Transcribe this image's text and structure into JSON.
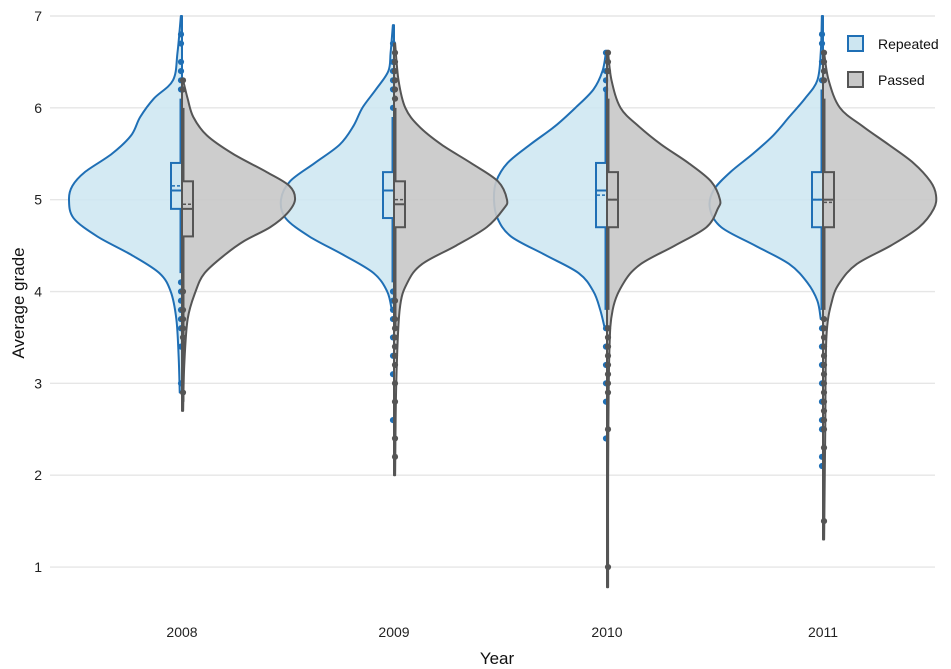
{
  "chart_data": {
    "type": "violin",
    "title": "",
    "xlabel": "Year",
    "ylabel": "Average grade",
    "ylim": [
      0.75,
      7
    ],
    "yticks": [
      1,
      2,
      3,
      4,
      5,
      6,
      7
    ],
    "categories": [
      "2008",
      "2009",
      "2010",
      "2011"
    ],
    "grid": "horizontal",
    "legend": {
      "position": "top-right",
      "items": [
        {
          "label": "Repeated",
          "series": "repeated"
        },
        {
          "label": "Passed",
          "series": "passed"
        }
      ]
    },
    "colors": {
      "repeated_line": "#1f6fb5",
      "repeated_fill": "#cde6f1",
      "passed_line": "#555555",
      "passed_fill": "#c8c8c8",
      "grid": "#e6e6e6"
    },
    "series": [
      {
        "name": "Repeated",
        "key": "repeated",
        "side": "left",
        "groups": [
          {
            "year": "2008",
            "ymin": 2.9,
            "ymax": 7.0,
            "box": {
              "q1": 4.9,
              "median": 5.1,
              "q3": 5.4,
              "mean": 5.15,
              "lower_whisker": 4.2,
              "upper_whisker": 6.1
            },
            "outliers": [
              6.8,
              6.7,
              6.5,
              6.4,
              6.3,
              6.2,
              4.1,
              4.0,
              3.9,
              3.8,
              3.7,
              3.6,
              3.4,
              3.0
            ],
            "density": [
              [
                2.9,
                0.02
              ],
              [
                3.3,
                0.03
              ],
              [
                3.7,
                0.05
              ],
              [
                4.0,
                0.1
              ],
              [
                4.2,
                0.2
              ],
              [
                4.4,
                0.45
              ],
              [
                4.6,
                0.75
              ],
              [
                4.8,
                0.96
              ],
              [
                5.0,
                1.0
              ],
              [
                5.15,
                0.97
              ],
              [
                5.3,
                0.86
              ],
              [
                5.5,
                0.62
              ],
              [
                5.7,
                0.45
              ],
              [
                5.9,
                0.37
              ],
              [
                6.1,
                0.25
              ],
              [
                6.3,
                0.08
              ],
              [
                6.6,
                0.04
              ],
              [
                7.0,
                0.01
              ]
            ]
          },
          {
            "year": "2009",
            "ymin": 2.0,
            "ymax": 6.9,
            "box": {
              "q1": 4.8,
              "median": 5.1,
              "q3": 5.3,
              "mean": 5.1,
              "lower_whisker": 4.1,
              "upper_whisker": 5.9
            },
            "outliers": [
              6.7,
              6.5,
              6.4,
              6.3,
              6.2,
              6.0,
              4.0,
              3.9,
              3.8,
              3.7,
              3.5,
              3.3,
              3.1,
              2.6
            ],
            "density": [
              [
                3.8,
                0.02
              ],
              [
                4.0,
                0.06
              ],
              [
                4.2,
                0.18
              ],
              [
                4.4,
                0.45
              ],
              [
                4.6,
                0.75
              ],
              [
                4.8,
                0.96
              ],
              [
                5.0,
                1.0
              ],
              [
                5.2,
                0.92
              ],
              [
                5.4,
                0.7
              ],
              [
                5.6,
                0.48
              ],
              [
                5.8,
                0.36
              ],
              [
                6.0,
                0.28
              ],
              [
                6.2,
                0.16
              ],
              [
                6.4,
                0.05
              ],
              [
                6.6,
                0.03
              ],
              [
                6.9,
                0.01
              ]
            ]
          },
          {
            "year": "2010",
            "ymin": 2.4,
            "ymax": 6.6,
            "box": {
              "q1": 4.7,
              "median": 5.1,
              "q3": 5.4,
              "mean": 5.05,
              "lower_whisker": 3.8,
              "upper_whisker": 6.2
            },
            "outliers": [
              6.6,
              6.4,
              6.3,
              6.2,
              3.6,
              3.4,
              3.2,
              3.0,
              2.8,
              2.4
            ],
            "density": [
              [
                3.6,
                0.02
              ],
              [
                3.8,
                0.06
              ],
              [
                4.0,
                0.12
              ],
              [
                4.2,
                0.25
              ],
              [
                4.4,
                0.55
              ],
              [
                4.6,
                0.85
              ],
              [
                4.8,
                0.97
              ],
              [
                5.0,
                1.0
              ],
              [
                5.2,
                0.98
              ],
              [
                5.4,
                0.88
              ],
              [
                5.6,
                0.68
              ],
              [
                5.8,
                0.46
              ],
              [
                6.0,
                0.28
              ],
              [
                6.2,
                0.12
              ],
              [
                6.4,
                0.04
              ],
              [
                6.6,
                0.01
              ]
            ]
          },
          {
            "year": "2011",
            "ymin": 2.1,
            "ymax": 7.0,
            "box": {
              "q1": 4.7,
              "median": 5.0,
              "q3": 5.3,
              "mean": 5.0,
              "lower_whisker": 3.8,
              "upper_whisker": 6.2
            },
            "outliers": [
              6.8,
              6.7,
              6.5,
              6.3,
              3.6,
              3.4,
              3.2,
              3.0,
              2.8,
              2.6,
              2.5,
              2.2,
              2.1
            ],
            "density": [
              [
                3.7,
                0.02
              ],
              [
                3.9,
                0.05
              ],
              [
                4.1,
                0.14
              ],
              [
                4.3,
                0.3
              ],
              [
                4.5,
                0.6
              ],
              [
                4.7,
                0.9
              ],
              [
                4.9,
                1.0
              ],
              [
                5.1,
                0.97
              ],
              [
                5.3,
                0.82
              ],
              [
                5.5,
                0.62
              ],
              [
                5.7,
                0.44
              ],
              [
                5.9,
                0.3
              ],
              [
                6.1,
                0.16
              ],
              [
                6.3,
                0.05
              ],
              [
                6.6,
                0.02
              ],
              [
                7.0,
                0.01
              ]
            ]
          }
        ]
      },
      {
        "name": "Passed",
        "key": "passed",
        "side": "right",
        "groups": [
          {
            "year": "2008",
            "ymin": 2.7,
            "ymax": 6.3,
            "box": {
              "q1": 4.6,
              "median": 4.9,
              "q3": 5.2,
              "mean": 4.95,
              "lower_whisker": 2.8,
              "upper_whisker": 6.0
            },
            "outliers": [
              6.3,
              6.2,
              4.0,
              3.8,
              3.7,
              3.6,
              3.5,
              2.9
            ],
            "density": [
              [
                2.7,
                0.01
              ],
              [
                3.2,
                0.02
              ],
              [
                3.7,
                0.05
              ],
              [
                4.0,
                0.12
              ],
              [
                4.2,
                0.2
              ],
              [
                4.4,
                0.38
              ],
              [
                4.55,
                0.55
              ],
              [
                4.7,
                0.78
              ],
              [
                4.85,
                0.93
              ],
              [
                5.0,
                1.0
              ],
              [
                5.15,
                0.95
              ],
              [
                5.3,
                0.75
              ],
              [
                5.5,
                0.45
              ],
              [
                5.7,
                0.22
              ],
              [
                5.9,
                0.1
              ],
              [
                6.1,
                0.05
              ],
              [
                6.3,
                0.01
              ]
            ]
          },
          {
            "year": "2009",
            "ymin": 2.0,
            "ymax": 6.7,
            "box": {
              "q1": 4.7,
              "median": 4.95,
              "q3": 5.2,
              "mean": 5.0,
              "lower_whisker": 3.6,
              "upper_whisker": 6.0
            },
            "outliers": [
              6.6,
              6.5,
              6.4,
              6.3,
              6.2,
              6.1,
              3.9,
              3.7,
              3.6,
              3.5,
              3.4,
              3.3,
              3.2,
              3.0,
              2.8,
              2.4,
              2.2
            ],
            "density": [
              [
                2.0,
                0.01
              ],
              [
                3.0,
                0.02
              ],
              [
                3.8,
                0.05
              ],
              [
                4.1,
                0.12
              ],
              [
                4.3,
                0.25
              ],
              [
                4.5,
                0.55
              ],
              [
                4.7,
                0.82
              ],
              [
                4.9,
                0.97
              ],
              [
                5.0,
                1.0
              ],
              [
                5.2,
                0.92
              ],
              [
                5.4,
                0.68
              ],
              [
                5.6,
                0.42
              ],
              [
                5.8,
                0.22
              ],
              [
                6.0,
                0.1
              ],
              [
                6.3,
                0.04
              ],
              [
                6.7,
                0.01
              ]
            ]
          },
          {
            "year": "2010",
            "ymin": 0.78,
            "ymax": 6.6,
            "box": {
              "q1": 4.7,
              "median": 5.0,
              "q3": 5.3,
              "mean": 5.0,
              "lower_whisker": 3.8,
              "upper_whisker": 6.1
            },
            "outliers": [
              6.6,
              6.5,
              6.4,
              3.6,
              3.5,
              3.4,
              3.3,
              3.2,
              3.1,
              3.0,
              2.9,
              2.5,
              1.0
            ],
            "density": [
              [
                0.78,
                0.01
              ],
              [
                2.0,
                0.01
              ],
              [
                3.3,
                0.02
              ],
              [
                3.8,
                0.05
              ],
              [
                4.1,
                0.15
              ],
              [
                4.3,
                0.3
              ],
              [
                4.5,
                0.6
              ],
              [
                4.7,
                0.88
              ],
              [
                4.9,
                0.98
              ],
              [
                5.0,
                1.0
              ],
              [
                5.2,
                0.92
              ],
              [
                5.4,
                0.72
              ],
              [
                5.6,
                0.48
              ],
              [
                5.8,
                0.28
              ],
              [
                6.0,
                0.12
              ],
              [
                6.3,
                0.04
              ],
              [
                6.6,
                0.01
              ]
            ]
          },
          {
            "year": "2011",
            "ymin": 1.3,
            "ymax": 6.6,
            "box": {
              "q1": 4.7,
              "median": 5.0,
              "q3": 5.3,
              "mean": 4.97,
              "lower_whisker": 3.8,
              "upper_whisker": 6.1
            },
            "outliers": [
              6.6,
              6.5,
              6.4,
              6.3,
              3.7,
              3.6,
              3.5,
              3.4,
              3.3,
              3.2,
              3.1,
              3.0,
              2.9,
              2.8,
              2.7,
              2.6,
              2.5,
              2.3,
              1.5
            ],
            "density": [
              [
                1.3,
                0.01
              ],
              [
                2.5,
                0.02
              ],
              [
                3.5,
                0.03
              ],
              [
                3.9,
                0.08
              ],
              [
                4.1,
                0.15
              ],
              [
                4.3,
                0.3
              ],
              [
                4.5,
                0.6
              ],
              [
                4.7,
                0.85
              ],
              [
                4.9,
                0.98
              ],
              [
                5.05,
                1.0
              ],
              [
                5.2,
                0.95
              ],
              [
                5.4,
                0.8
              ],
              [
                5.6,
                0.58
              ],
              [
                5.8,
                0.35
              ],
              [
                6.0,
                0.15
              ],
              [
                6.3,
                0.05
              ],
              [
                6.6,
                0.01
              ]
            ]
          }
        ]
      }
    ]
  }
}
